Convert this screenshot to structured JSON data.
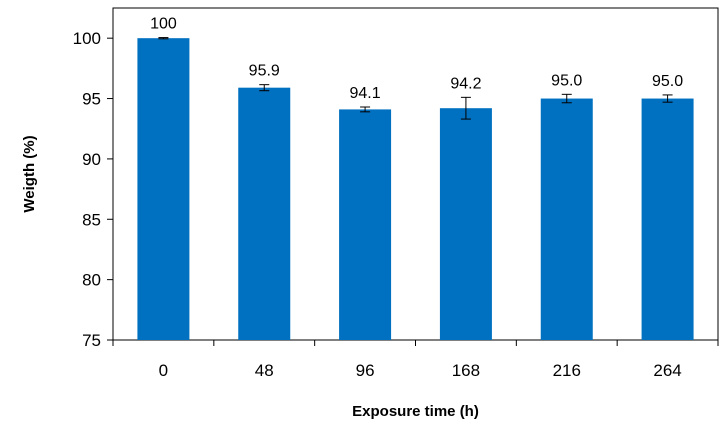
{
  "chart_data": {
    "type": "bar",
    "title": "",
    "xlabel": "Exposure time (h)",
    "ylabel": "Weigth (%)",
    "categories": [
      "0",
      "48",
      "96",
      "168",
      "216",
      "264"
    ],
    "values": [
      100,
      95.9,
      94.1,
      94.2,
      95.0,
      95.0
    ],
    "data_labels": [
      "100",
      "95.9",
      "94.1",
      "94.2",
      "95.0",
      "95.0"
    ],
    "error": [
      0.05,
      0.25,
      0.2,
      0.9,
      0.35,
      0.3
    ],
    "ylim": [
      75,
      102.5
    ],
    "yticks": [
      75,
      80,
      85,
      90,
      95,
      100
    ],
    "bar_color": "#0070c0",
    "grid": false,
    "legend": "none"
  }
}
